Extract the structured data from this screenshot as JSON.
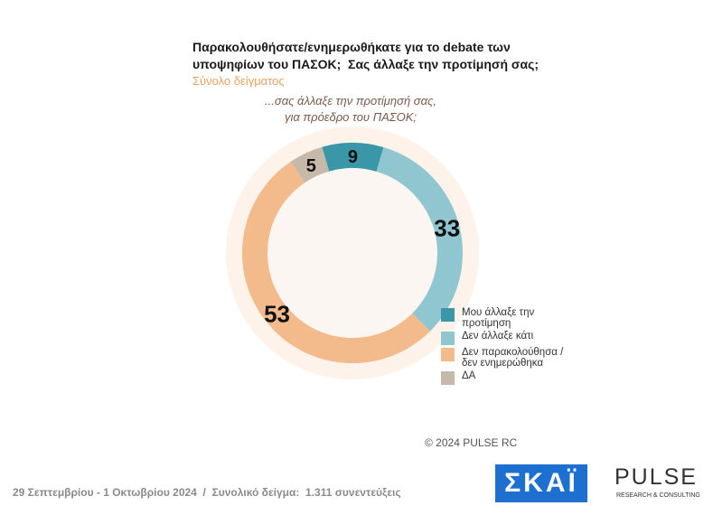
{
  "chart_data": {
    "type": "donut",
    "title_lines": [
      "Παρακολουθήσατε/ενημερωθήκατε για το debate των",
      "υποψηφίων του ΠΑΣΟΚ;  Σας άλλαξε την προτίμησή σας;"
    ],
    "subtitle": "Σύνολο δείγματος",
    "annotation_lines": [
      "...σας άλλαξε την προτίμησή σας,",
      "για πρόεδρο του ΠΑΣΟΚ;"
    ],
    "categories": [
      "Μου άλλαξε την προτίμηση",
      "Δεν άλλαξε κάτι",
      "Δεν παρακολούθησα / δεν ενημερώθηκα",
      "ΔΑ"
    ],
    "values": [
      9,
      33,
      53,
      5
    ],
    "colors": [
      "#3a97a8",
      "#8fc6d0",
      "#f3ba8b",
      "#c6b9aa"
    ],
    "copyright": "© 2024 PULSE RC",
    "footer": "29 Σεπτεμβρίου - 1 Οκτωβρίου 2024  /  Συνολικό δείγμα:  1.311 συνεντεύξεις",
    "logos": [
      "ΣΚΑΪ",
      "PULSE",
      "RESEARCH & CONSULTING"
    ]
  }
}
